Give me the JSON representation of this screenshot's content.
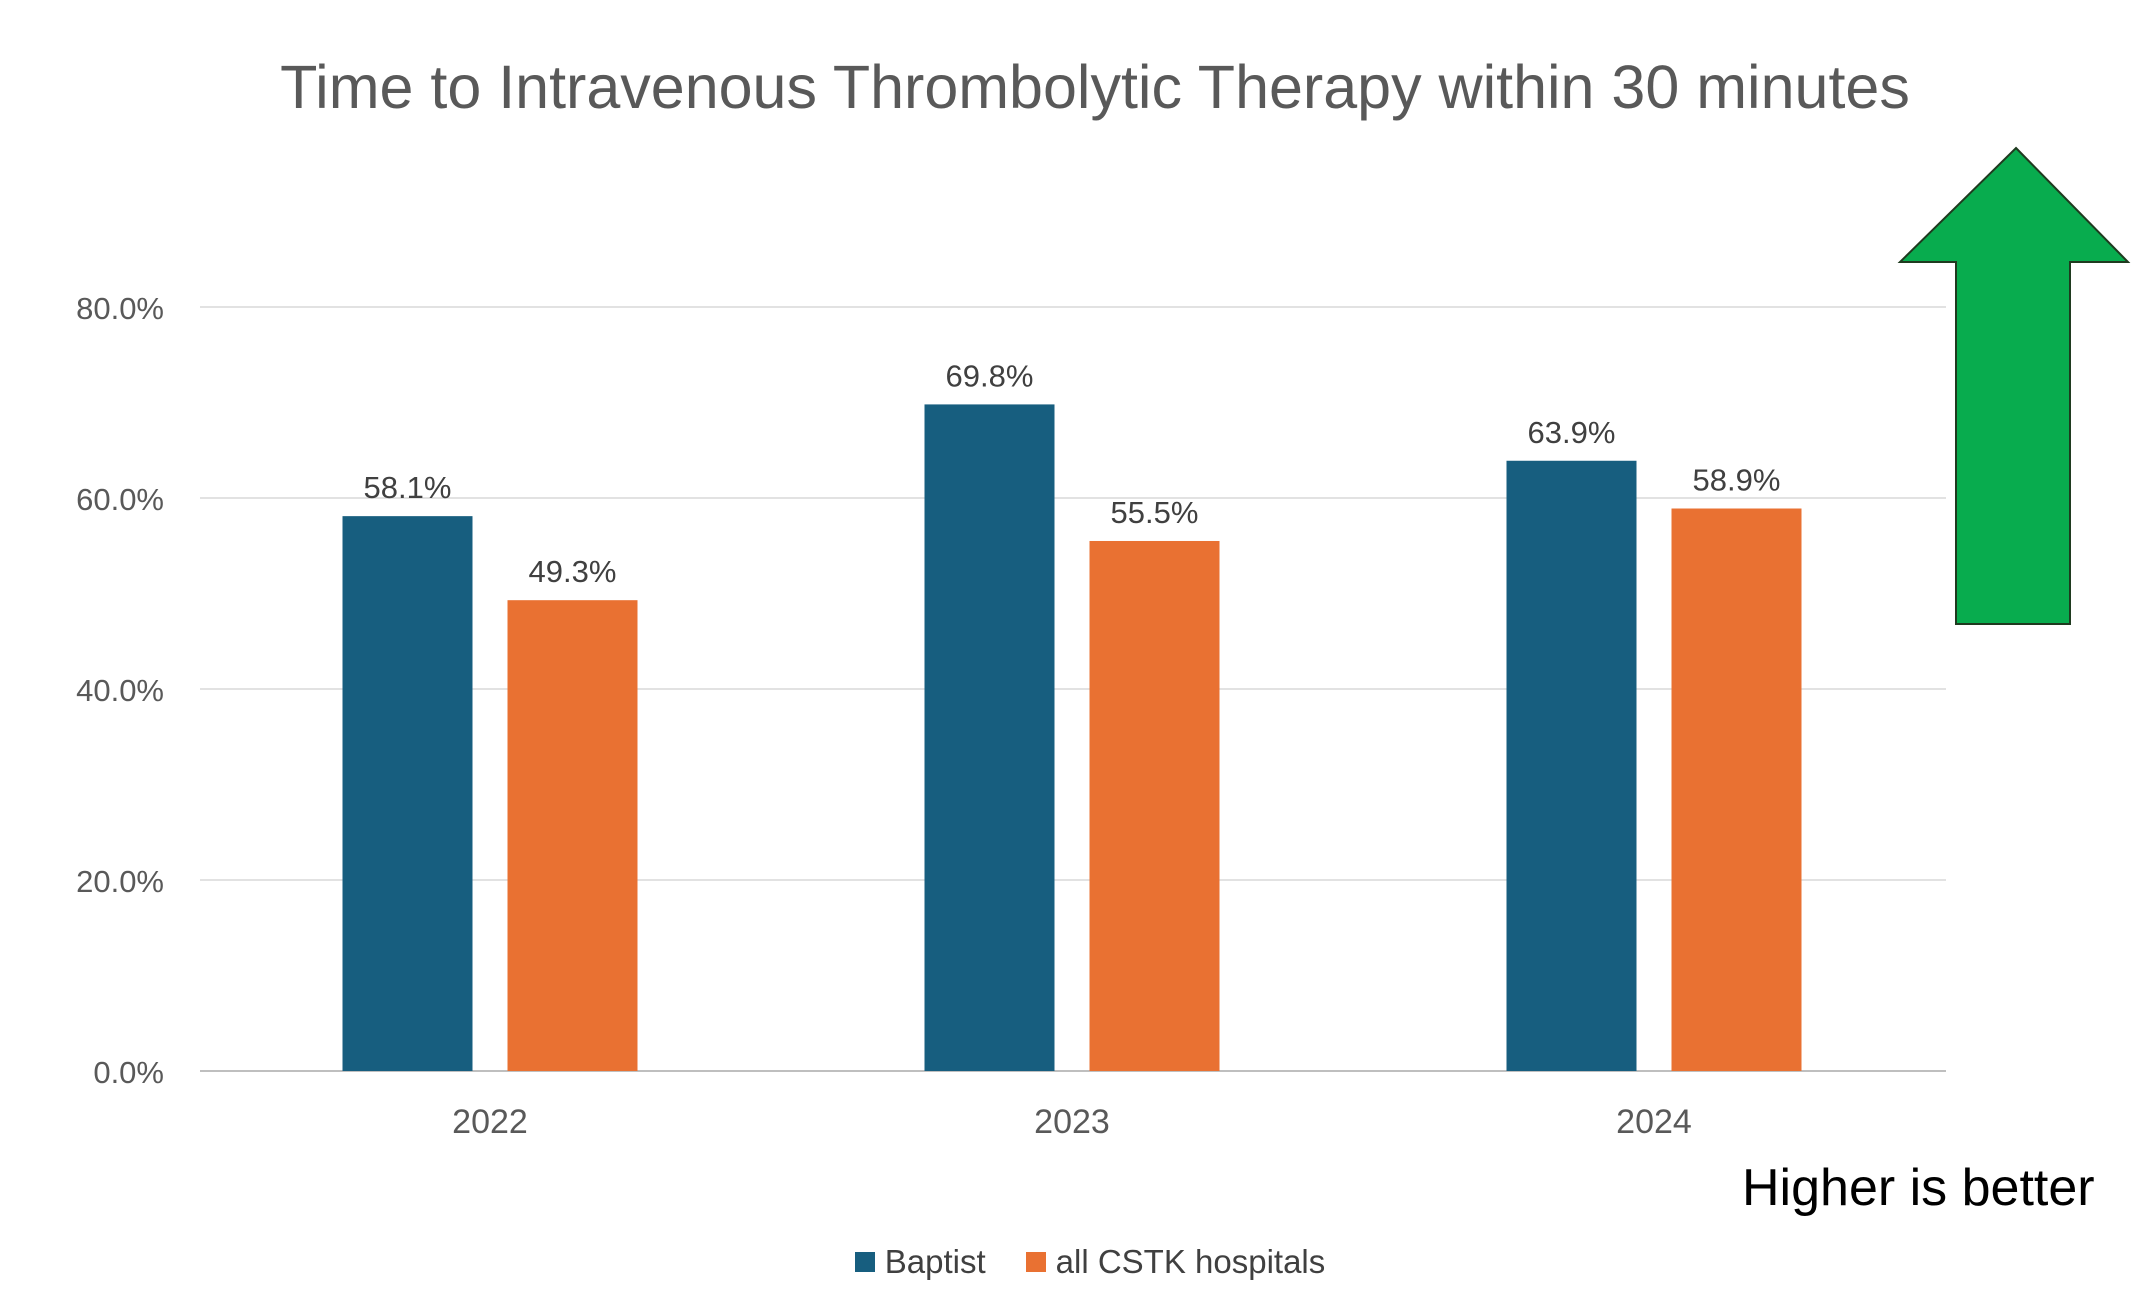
{
  "chart_data": {
    "type": "bar",
    "title": "Time to Intravenous Thrombolytic Therapy within 30 minutes",
    "categories": [
      "2022",
      "2023",
      "2024"
    ],
    "series": [
      {
        "name": "Baptist",
        "values": [
          58.1,
          69.8,
          63.9
        ],
        "labels": [
          "58.1%",
          "69.8%",
          "63.9%"
        ],
        "color": "#175E7F"
      },
      {
        "name": "all CSTK hospitals",
        "values": [
          49.3,
          55.5,
          58.9
        ],
        "labels": [
          "49.3%",
          "55.5%",
          "58.9%"
        ],
        "color": "#E97132"
      }
    ],
    "y_ticks": [
      "0.0%",
      "20.0%",
      "40.0%",
      "60.0%",
      "80.0%"
    ],
    "ylim": [
      0,
      80
    ],
    "grid": true,
    "legend_position": "bottom"
  },
  "annotation": {
    "text": "Higher is better",
    "arrow_icon": "up-arrow-icon",
    "arrow_color": "#08AC4E"
  }
}
